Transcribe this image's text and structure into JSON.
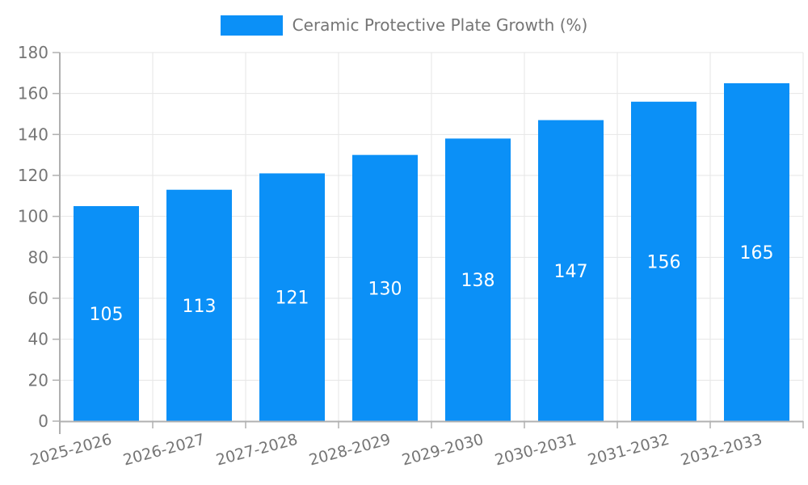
{
  "legend": {
    "items": [
      {
        "label": "Ceramic Protective Plate Growth (%)",
        "swatch_color": "#0b90f7"
      }
    ]
  },
  "chart_data": {
    "type": "bar",
    "title": "",
    "xlabel": "",
    "ylabel": "",
    "categories": [
      "2025-2026",
      "2026-2027",
      "2027-2028",
      "2028-2029",
      "2029-2030",
      "2030-2031",
      "2031-2032",
      "2032-2033"
    ],
    "series": [
      {
        "name": "Ceramic Protective Plate Growth (%)",
        "values": [
          105,
          113,
          121,
          130,
          138,
          147,
          156,
          165
        ]
      }
    ],
    "bar_value_labels": [
      "105",
      "113",
      "121",
      "130",
      "138",
      "147",
      "156",
      "165"
    ],
    "ylim": [
      0,
      180
    ],
    "yticks": [
      0,
      20,
      40,
      60,
      80,
      100,
      120,
      140,
      160,
      180
    ],
    "grid": true,
    "legend_position": "top-center",
    "x_label_rotation_deg": -15,
    "colors": {
      "bar": "#0b90f7",
      "bar_label_text": "#ffffff",
      "axis_line": "#b0b0b0",
      "grid_line": "#e6e6e6",
      "tick_label_text": "#757575",
      "legend_text": "#757575",
      "background": "#ffffff"
    }
  }
}
